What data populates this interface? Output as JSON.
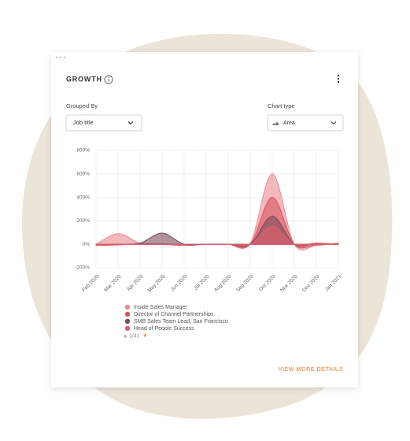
{
  "card": {
    "title": "GROWTH",
    "grouped_by_label": "Grouped By",
    "grouped_by_value": "Job title",
    "chart_type_label": "Chart type",
    "chart_type_value": "Area",
    "pager": "1/41",
    "link": "VIEW MORE DETAILS"
  },
  "chart_data": {
    "type": "area",
    "categories": [
      "Feb 2020",
      "Mar 2020",
      "Apr 2020",
      "May 2020",
      "Jun 2020",
      "Jul 2020",
      "Aug 2020",
      "Sep 2020",
      "Oct 2020",
      "Nov 2020",
      "Dec 2020",
      "Jan 2021"
    ],
    "ylim": [
      -200,
      800
    ],
    "yticks": [
      {
        "value": -200,
        "label": "-200%"
      },
      {
        "value": 0,
        "label": "0%"
      },
      {
        "value": 200,
        "label": "200%"
      },
      {
        "value": 400,
        "label": "400%"
      },
      {
        "value": 600,
        "label": "600%"
      },
      {
        "value": 800,
        "label": "800%"
      }
    ],
    "grid": true,
    "series": [
      {
        "name": "Inside Sales Manager",
        "color": "#ec8a91",
        "values": [
          0,
          90,
          10,
          5,
          0,
          0,
          0,
          10,
          600,
          0,
          -10,
          10
        ]
      },
      {
        "name": "Director of Channel Partnerships",
        "color": "#d9545f",
        "values": [
          -10,
          -5,
          5,
          0,
          -10,
          0,
          0,
          0,
          400,
          0,
          -5,
          10
        ]
      },
      {
        "name": "SMB Sales Team Lead, San Francisco",
        "color": "#7d4b5a",
        "values": [
          0,
          0,
          10,
          95,
          0,
          0,
          0,
          0,
          240,
          0,
          10,
          0
        ]
      },
      {
        "name": "Head of People Success",
        "color": "#e0606b",
        "values": [
          0,
          0,
          0,
          0,
          0,
          0,
          0,
          0,
          150,
          0,
          10,
          0
        ]
      }
    ]
  }
}
